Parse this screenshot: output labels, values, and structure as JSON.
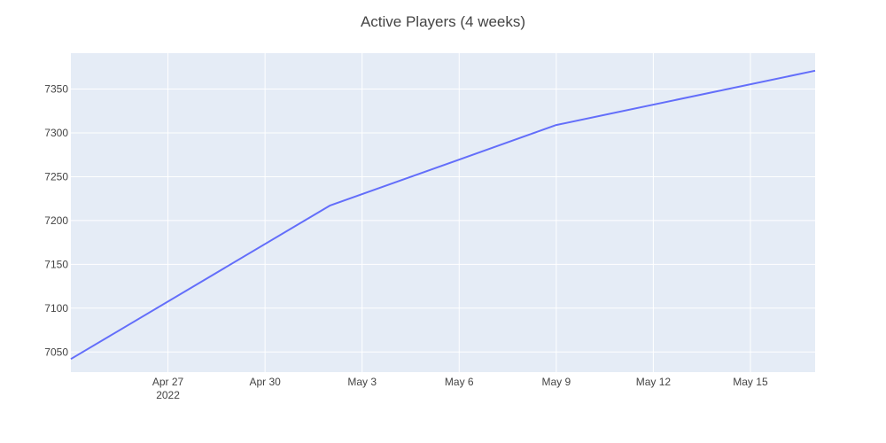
{
  "chart_data": {
    "type": "line",
    "title": "Active Players (4 weeks)",
    "xlabel": "",
    "ylabel": "",
    "x_type": "date",
    "xlim": [
      "2022-04-24",
      "2022-05-17"
    ],
    "ylim": [
      7027,
      7391
    ],
    "x_ticks": [
      {
        "date": "2022-04-27",
        "label": "Apr 27",
        "sublabel": "2022"
      },
      {
        "date": "2022-04-30",
        "label": "Apr 30",
        "sublabel": ""
      },
      {
        "date": "2022-05-03",
        "label": "May 3",
        "sublabel": ""
      },
      {
        "date": "2022-05-06",
        "label": "May 6",
        "sublabel": ""
      },
      {
        "date": "2022-05-09",
        "label": "May 9",
        "sublabel": ""
      },
      {
        "date": "2022-05-12",
        "label": "May 12",
        "sublabel": ""
      },
      {
        "date": "2022-05-15",
        "label": "May 15",
        "sublabel": ""
      }
    ],
    "y_ticks": [
      7050,
      7100,
      7150,
      7200,
      7250,
      7300,
      7350
    ],
    "grid": true,
    "colors": {
      "plot_background": "#E5ECF6",
      "grid": "#FFFFFF",
      "line": "#636EFA",
      "text": "#444444"
    },
    "series": [
      {
        "x": [
          "2022-04-24",
          "2022-05-02",
          "2022-05-09",
          "2022-05-17"
        ],
        "y": [
          7042,
          7217,
          7309,
          7371
        ]
      }
    ]
  }
}
